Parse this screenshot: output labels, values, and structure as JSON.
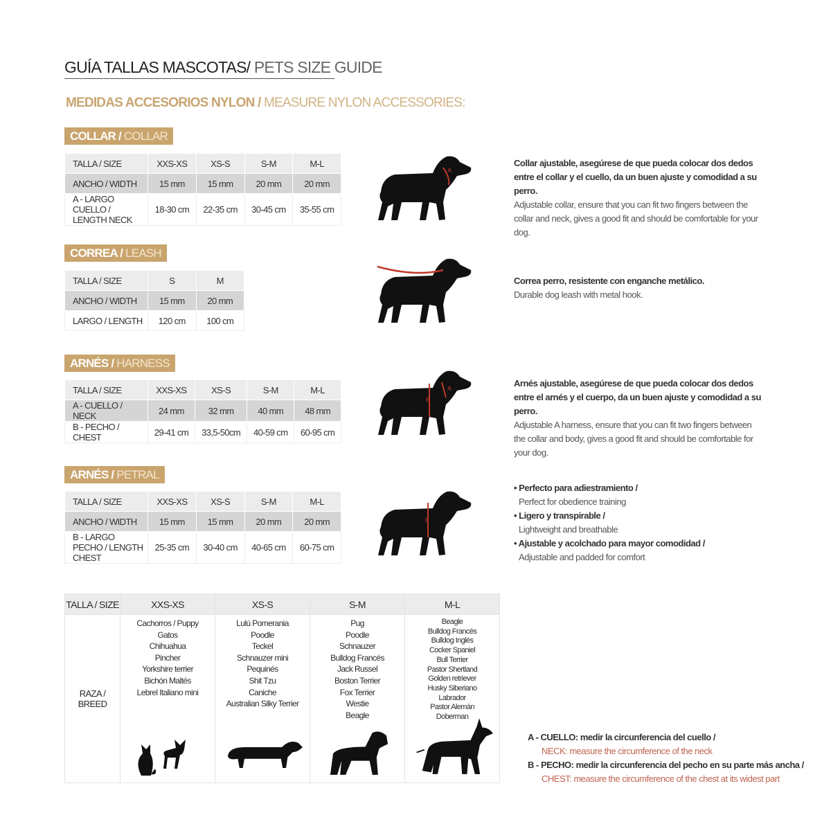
{
  "title": {
    "bold": "GUÍA TALLAS MASCOTAS/",
    "light": " PETS SIZE GUIDE"
  },
  "subtitle": {
    "bold": "MEDIDAS ACCESORIOS NYLON /",
    "light": " MEASURE NYLON ACCESSORIES:"
  },
  "colors": {
    "gold": "#c9a46d",
    "row_light": "#ececec",
    "row_dark": "#d5d5d5",
    "red": "#b5492f"
  },
  "sections": {
    "collar": {
      "badge": {
        "bold": "COLLAR /",
        "light": " COLLAR"
      },
      "rows": [
        [
          "TALLA / SIZE",
          "XXS-XS",
          "XS-S",
          "S-M",
          "M-L"
        ],
        [
          "ANCHO / WIDTH",
          "15 mm",
          "15 mm",
          "20 mm",
          "20 mm"
        ],
        [
          "A - LARGO CUELLO / LENGTH NECK",
          "18-30 cm",
          "22-35 cm",
          "30-45 cm",
          "35-55 cm"
        ]
      ],
      "desc_es": "Collar ajustable, asegúrese de que pueda colocar dos dedos entre el collar y el cuello, da un buen ajuste y comodidad a su perro.",
      "desc_en": "Adjustable collar, ensure that you can fit two fingers between the collar and neck, gives a good fit and should be comfortable for your dog.",
      "mark": "A"
    },
    "leash": {
      "badge": {
        "bold": "CORREA /",
        "light": " LEASH"
      },
      "rows": [
        [
          "TALLA / SIZE",
          "S",
          "M"
        ],
        [
          "ANCHO / WIDTH",
          "15 mm",
          "20 mm"
        ],
        [
          "LARGO / LENGTH",
          "120 cm",
          "100 cm"
        ]
      ],
      "desc_es": "Correa perro, resistente con enganche metálico.",
      "desc_en": "Durable dog leash with metal hook."
    },
    "harness": {
      "badge": {
        "bold": "ARNÉS /",
        "light": " HARNESS"
      },
      "rows": [
        [
          "TALLA / SIZE",
          "XXS-XS",
          "XS-S",
          "S-M",
          "M-L"
        ],
        [
          "A - CUELLO / NECK",
          "24 mm",
          "32 mm",
          "40 mm",
          "48 mm"
        ],
        [
          "B - PECHO / CHEST",
          "29-41 cm",
          "33,5-50cm",
          "40-59 cm",
          "60-95 cm"
        ]
      ],
      "desc_es": "Arnés ajustable, asegúrese de que pueda colocar dos dedos entre el arnés y el cuerpo, da un buen ajuste y comodidad a su perro.",
      "desc_en": "Adjustable A harness, ensure that you can fit two fingers between the collar and body, gives a good fit and should be comfortable for your dog.",
      "mark_a": "A",
      "mark_b": "B"
    },
    "petral": {
      "badge": {
        "bold": "ARNÉS /",
        "light": " PETRAL"
      },
      "rows": [
        [
          "TALLA / SIZE",
          "XXS-XS",
          "XS-S",
          "S-M",
          "M-L"
        ],
        [
          "ANCHO / WIDTH",
          "15 mm",
          "15 mm",
          "20 mm",
          "20 mm"
        ],
        [
          "B - LARGO PECHO / LENGTH CHEST",
          "25-35 cm",
          "30-40 cm",
          "40-65 cm",
          "60-75 cm"
        ]
      ],
      "bullets": [
        {
          "es": "• Perfecto para adiestramiento /",
          "en": "Perfect for obedience training"
        },
        {
          "es": "• Ligero y transpirable /",
          "en": "Lightweight and breathable"
        },
        {
          "es": "• Ajustable y acolchado para mayor comodidad /",
          "en": "Adjustable and padded for comfort"
        }
      ],
      "mark": "B"
    }
  },
  "breeds": {
    "header": [
      "TALLA /  SIZE",
      "XXS-XS",
      "XS-S",
      "S-M",
      "M-L"
    ],
    "row_label": "RAZA / BREED",
    "lists": [
      [
        "Cachorros / Puppy",
        "Gatos",
        "Chihuahua",
        "Pincher",
        "Yorkshire terrier",
        "Bichón Maltés",
        "Lebrel Italiano mini"
      ],
      [
        "Lulú Pomerania",
        "Poodle",
        "Teckel",
        "Schnauzer mini",
        "Pequinés",
        "Shit Tzu",
        "Caniche",
        "Australian Silky Terrier"
      ],
      [
        "Pug",
        "Poodle",
        "Schnauzer",
        "Bulldog Francés",
        "Jack Russel",
        "Boston Terrier",
        "Fox Terrier",
        "Westie",
        "Beagle"
      ],
      [
        "Beagle",
        "Bulldog Francés",
        "Bulldog Inglés",
        "Cocker Spaniel",
        "Bull Terrier",
        "Pastor Shertland",
        "Golden retriever",
        "Husky Siberiano",
        "Labrador",
        "Pastor Alemán",
        "Doberman"
      ]
    ],
    "icons": [
      "cat-icon",
      "chihuahua-icon",
      "dachshund-icon",
      "schnauzer-icon",
      "doberman-icon"
    ]
  },
  "legend": [
    {
      "es": "A - CUELLO: medir la circunferencia del cuello /",
      "en": "NECK: measure the circumference of the neck"
    },
    {
      "es": "B - PECHO: medir la circunferencia del pecho en su parte más ancha /",
      "en": "CHEST: measure the circumference of the chest at its widest part"
    }
  ]
}
